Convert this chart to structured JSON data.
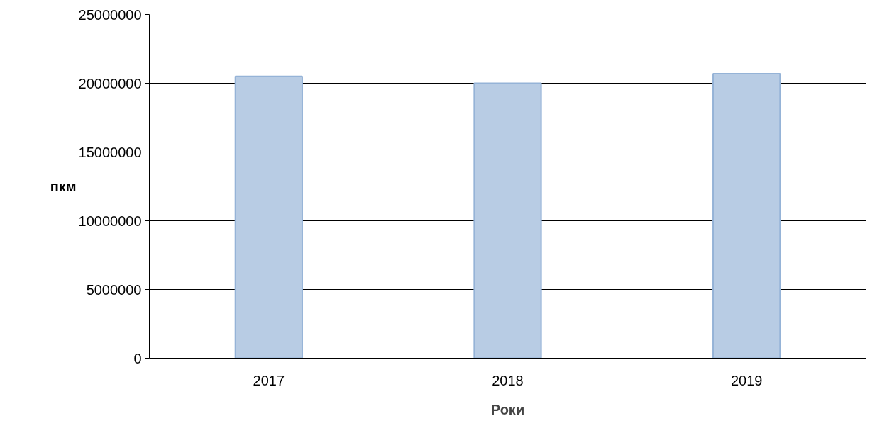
{
  "chart_data": {
    "type": "bar",
    "xlabel": "Роки",
    "ylabel": "пкм",
    "categories": [
      "2017",
      "2018",
      "2019"
    ],
    "series": [
      {
        "color": "#b8cce4",
        "values": [
          20500000,
          20000000,
          20700000
        ]
      }
    ],
    "ylim": [
      0,
      25000000
    ],
    "yticks": [
      0,
      5000000,
      10000000,
      15000000,
      20000000,
      25000000
    ],
    "grid": "y"
  }
}
